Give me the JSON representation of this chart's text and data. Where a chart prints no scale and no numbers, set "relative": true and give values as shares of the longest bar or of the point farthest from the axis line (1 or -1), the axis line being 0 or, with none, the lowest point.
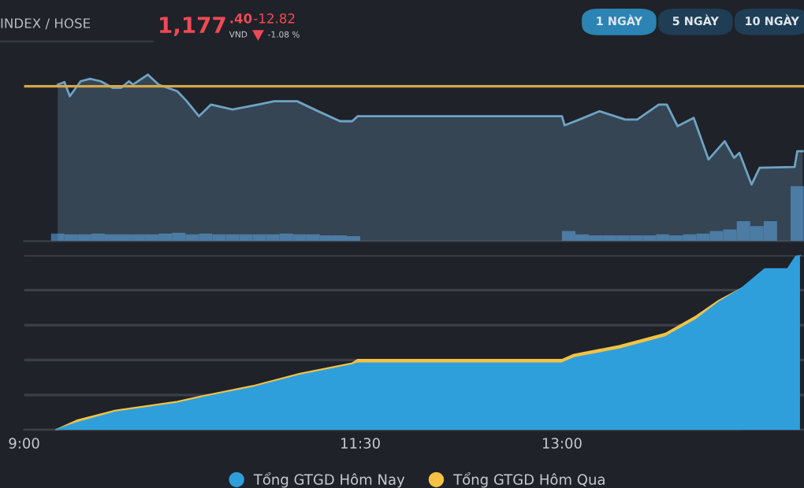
{
  "chart_data": [
    {
      "type": "line",
      "relative": true,
      "annotations": [
        "INDEX / HOSE",
        "1,177",
        ".40",
        "VND",
        "-12.82",
        "-1.08 %",
        "1 NGÀY",
        "5 NGÀY",
        "10 NGÀY"
      ],
      "x": [
        9.25,
        9.3,
        9.34,
        9.42,
        9.49,
        9.57,
        9.66,
        9.72,
        9.78,
        9.81,
        9.92,
        10.0,
        10.14,
        10.21,
        10.3,
        10.39,
        10.55,
        10.74,
        10.86,
        11.03,
        11.2,
        11.35,
        11.44,
        11.48,
        13.0,
        13.02,
        13.13,
        13.28,
        13.47,
        13.56,
        13.72,
        13.78,
        13.86,
        13.98,
        14.09,
        14.21,
        14.28,
        14.32,
        14.41,
        14.47,
        14.73,
        14.75,
        14.79
      ],
      "series": [
        {
          "type": "area",
          "color": "#6fa3c4",
          "values": [
            0.94,
            0.955,
            0.87,
            0.96,
            0.975,
            0.96,
            0.92,
            0.92,
            0.96,
            0.94,
            1.0,
            0.94,
            0.9,
            0.84,
            0.75,
            0.82,
            0.79,
            0.82,
            0.84,
            0.84,
            0.775,
            0.72,
            0.72,
            0.75,
            0.75,
            0.695,
            0.73,
            0.78,
            0.73,
            0.73,
            0.82,
            0.82,
            0.69,
            0.74,
            0.49,
            0.6,
            0.5,
            0.53,
            0.34,
            0.44,
            0.445,
            0.54,
            0.54
          ]
        },
        {
          "type": "bar",
          "color": "#3f6d96",
          "x": [
            9.25,
            9.35,
            9.45,
            9.55,
            9.65,
            9.75,
            9.85,
            9.95,
            10.05,
            10.15,
            10.25,
            10.35,
            10.45,
            10.55,
            10.65,
            10.75,
            10.85,
            10.95,
            11.05,
            11.15,
            11.25,
            11.35,
            11.45,
            13.05,
            13.15,
            13.25,
            13.35,
            13.45,
            13.55,
            13.65,
            13.75,
            13.85,
            13.95,
            14.05,
            14.15,
            14.25,
            14.35,
            14.45,
            14.55,
            14.75
          ],
          "values": [
            0.045,
            0.04,
            0.04,
            0.045,
            0.04,
            0.04,
            0.04,
            0.04,
            0.045,
            0.05,
            0.04,
            0.045,
            0.04,
            0.04,
            0.04,
            0.04,
            0.04,
            0.045,
            0.04,
            0.04,
            0.035,
            0.035,
            0.03,
            0.06,
            0.04,
            0.035,
            0.035,
            0.035,
            0.035,
            0.035,
            0.04,
            0.035,
            0.04,
            0.045,
            0.06,
            0.07,
            0.12,
            0.09,
            0.12,
            0.33
          ]
        }
      ],
      "ref_lines": [
        {
          "axis": "y",
          "value": 0.93,
          "color": "#d4a94a"
        }
      ],
      "xlim": [
        9,
        14.8
      ],
      "tick_labels": false
    },
    {
      "type": "area",
      "relative": true,
      "grid": "y",
      "legend": "bottom",
      "xlim": [
        9,
        14.8
      ],
      "xticks": [
        {
          "value": 9,
          "label": "9:00"
        },
        {
          "value": 11.5,
          "label": "11:30"
        },
        {
          "value": 13,
          "label": "13:00"
        }
      ],
      "tick_labels": "x",
      "series": [
        {
          "name": "Tổng GTGD Hôm Nay",
          "color": "#2f9fdc",
          "x": [
            9.24,
            9.4,
            9.68,
            10.14,
            10.31,
            10.7,
            11.05,
            11.44,
            11.48,
            13.0,
            13.09,
            13.43,
            13.77,
            14.0,
            14.17,
            14.34,
            14.51,
            14.68,
            14.74,
            14.77
          ],
          "values": [
            0,
            0.04,
            0.1,
            0.15,
            0.18,
            0.24,
            0.31,
            0.37,
            0.38,
            0.38,
            0.41,
            0.46,
            0.53,
            0.63,
            0.73,
            0.81,
            0.92,
            0.92,
            0.99,
            1.0
          ]
        },
        {
          "name": "Tổng GTGD Hôm Qua",
          "color": "#f5c244",
          "x": [
            9.24,
            9.4,
            9.68,
            10.14,
            10.31,
            10.7,
            11.05,
            11.44,
            11.48,
            13.0,
            13.09,
            13.43,
            13.77,
            14.0,
            14.17,
            14.34
          ],
          "values": [
            0,
            0.055,
            0.11,
            0.16,
            0.19,
            0.25,
            0.32,
            0.38,
            0.4,
            0.4,
            0.43,
            0.48,
            0.55,
            0.65,
            0.74,
            0.81
          ]
        }
      ]
    }
  ]
}
